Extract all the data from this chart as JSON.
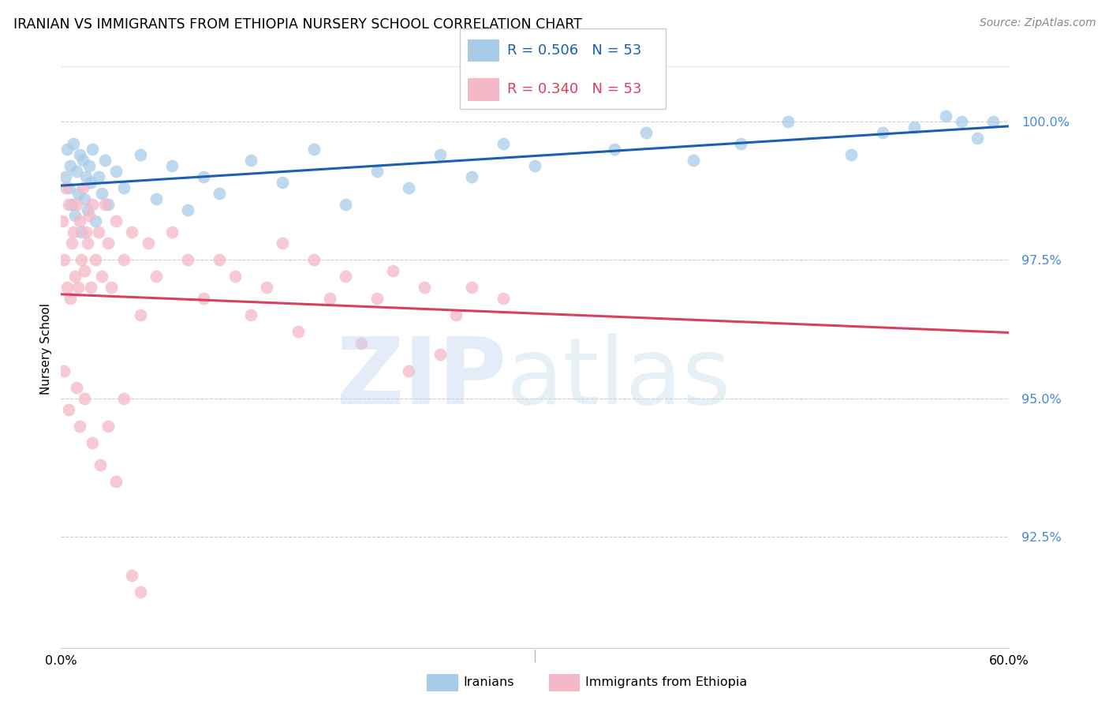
{
  "title": "IRANIAN VS IMMIGRANTS FROM ETHIOPIA NURSERY SCHOOL CORRELATION CHART",
  "source": "Source: ZipAtlas.com",
  "ylabel": "Nursery School",
  "xmin": 0.0,
  "xmax": 60.0,
  "ymin": 90.5,
  "ymax": 101.3,
  "blue_R": 0.506,
  "blue_N": 53,
  "pink_R": 0.34,
  "pink_N": 53,
  "blue_color": "#a8cce8",
  "pink_color": "#f5b8c8",
  "blue_line_color": "#1a5fb0",
  "pink_line_color": "#d94060",
  "ytick_positions": [
    92.5,
    95.0,
    97.5,
    100.0
  ],
  "ytick_labels": [
    "92.5%",
    "95.0%",
    "97.5%",
    "100.0%"
  ],
  "iranians_x": [
    0.3,
    0.4,
    0.5,
    0.6,
    0.7,
    0.8,
    0.9,
    1.0,
    1.1,
    1.2,
    1.3,
    1.4,
    1.5,
    1.6,
    1.7,
    1.8,
    1.9,
    2.0,
    2.2,
    2.4,
    2.6,
    2.8,
    3.0,
    3.5,
    4.0,
    5.0,
    6.0,
    7.0,
    8.0,
    9.0,
    10.0,
    12.0,
    14.0,
    16.0,
    18.0,
    20.0,
    22.0,
    24.0,
    26.0,
    28.0,
    30.0,
    35.0,
    37.0,
    40.0,
    43.0,
    46.0,
    50.0,
    52.0,
    54.0,
    56.0,
    57.0,
    58.0,
    59.0
  ],
  "iranians_y": [
    99.0,
    99.5,
    98.8,
    99.2,
    98.5,
    99.6,
    98.3,
    99.1,
    98.7,
    99.4,
    98.0,
    99.3,
    98.6,
    99.0,
    98.4,
    99.2,
    98.9,
    99.5,
    98.2,
    99.0,
    98.7,
    99.3,
    98.5,
    99.1,
    98.8,
    99.4,
    98.6,
    99.2,
    98.4,
    99.0,
    98.7,
    99.3,
    98.9,
    99.5,
    98.5,
    99.1,
    98.8,
    99.4,
    99.0,
    99.6,
    99.2,
    99.5,
    99.8,
    99.3,
    99.6,
    100.0,
    99.4,
    99.8,
    99.9,
    100.1,
    100.0,
    99.7,
    100.0
  ],
  "ethiopia_x": [
    0.1,
    0.2,
    0.3,
    0.4,
    0.5,
    0.6,
    0.7,
    0.8,
    0.9,
    1.0,
    1.1,
    1.2,
    1.3,
    1.4,
    1.5,
    1.6,
    1.7,
    1.8,
    1.9,
    2.0,
    2.2,
    2.4,
    2.6,
    2.8,
    3.0,
    3.2,
    3.5,
    4.0,
    4.5,
    5.0,
    5.5,
    6.0,
    7.0,
    8.0,
    9.0,
    10.0,
    11.0,
    12.0,
    13.0,
    14.0,
    15.0,
    16.0,
    17.0,
    18.0,
    19.0,
    20.0,
    21.0,
    22.0,
    23.0,
    24.0,
    25.0,
    26.0,
    28.0
  ],
  "ethiopia_y": [
    98.2,
    97.5,
    98.8,
    97.0,
    98.5,
    96.8,
    97.8,
    98.0,
    97.2,
    98.5,
    97.0,
    98.2,
    97.5,
    98.8,
    97.3,
    98.0,
    97.8,
    98.3,
    97.0,
    98.5,
    97.5,
    98.0,
    97.2,
    98.5,
    97.8,
    97.0,
    98.2,
    97.5,
    98.0,
    96.5,
    97.8,
    97.2,
    98.0,
    97.5,
    96.8,
    97.5,
    97.2,
    96.5,
    97.0,
    97.8,
    96.2,
    97.5,
    96.8,
    97.2,
    96.0,
    96.8,
    97.3,
    95.5,
    97.0,
    95.8,
    96.5,
    97.0,
    96.8
  ],
  "ethiopia_outlier_x": [
    0.2,
    0.5,
    1.0,
    1.2,
    1.5,
    2.0,
    2.5,
    3.0,
    3.5,
    4.0,
    4.5,
    5.0
  ],
  "ethiopia_outlier_y": [
    95.5,
    94.8,
    95.2,
    94.5,
    95.0,
    94.2,
    93.8,
    94.5,
    93.5,
    95.0,
    91.8,
    91.5
  ]
}
